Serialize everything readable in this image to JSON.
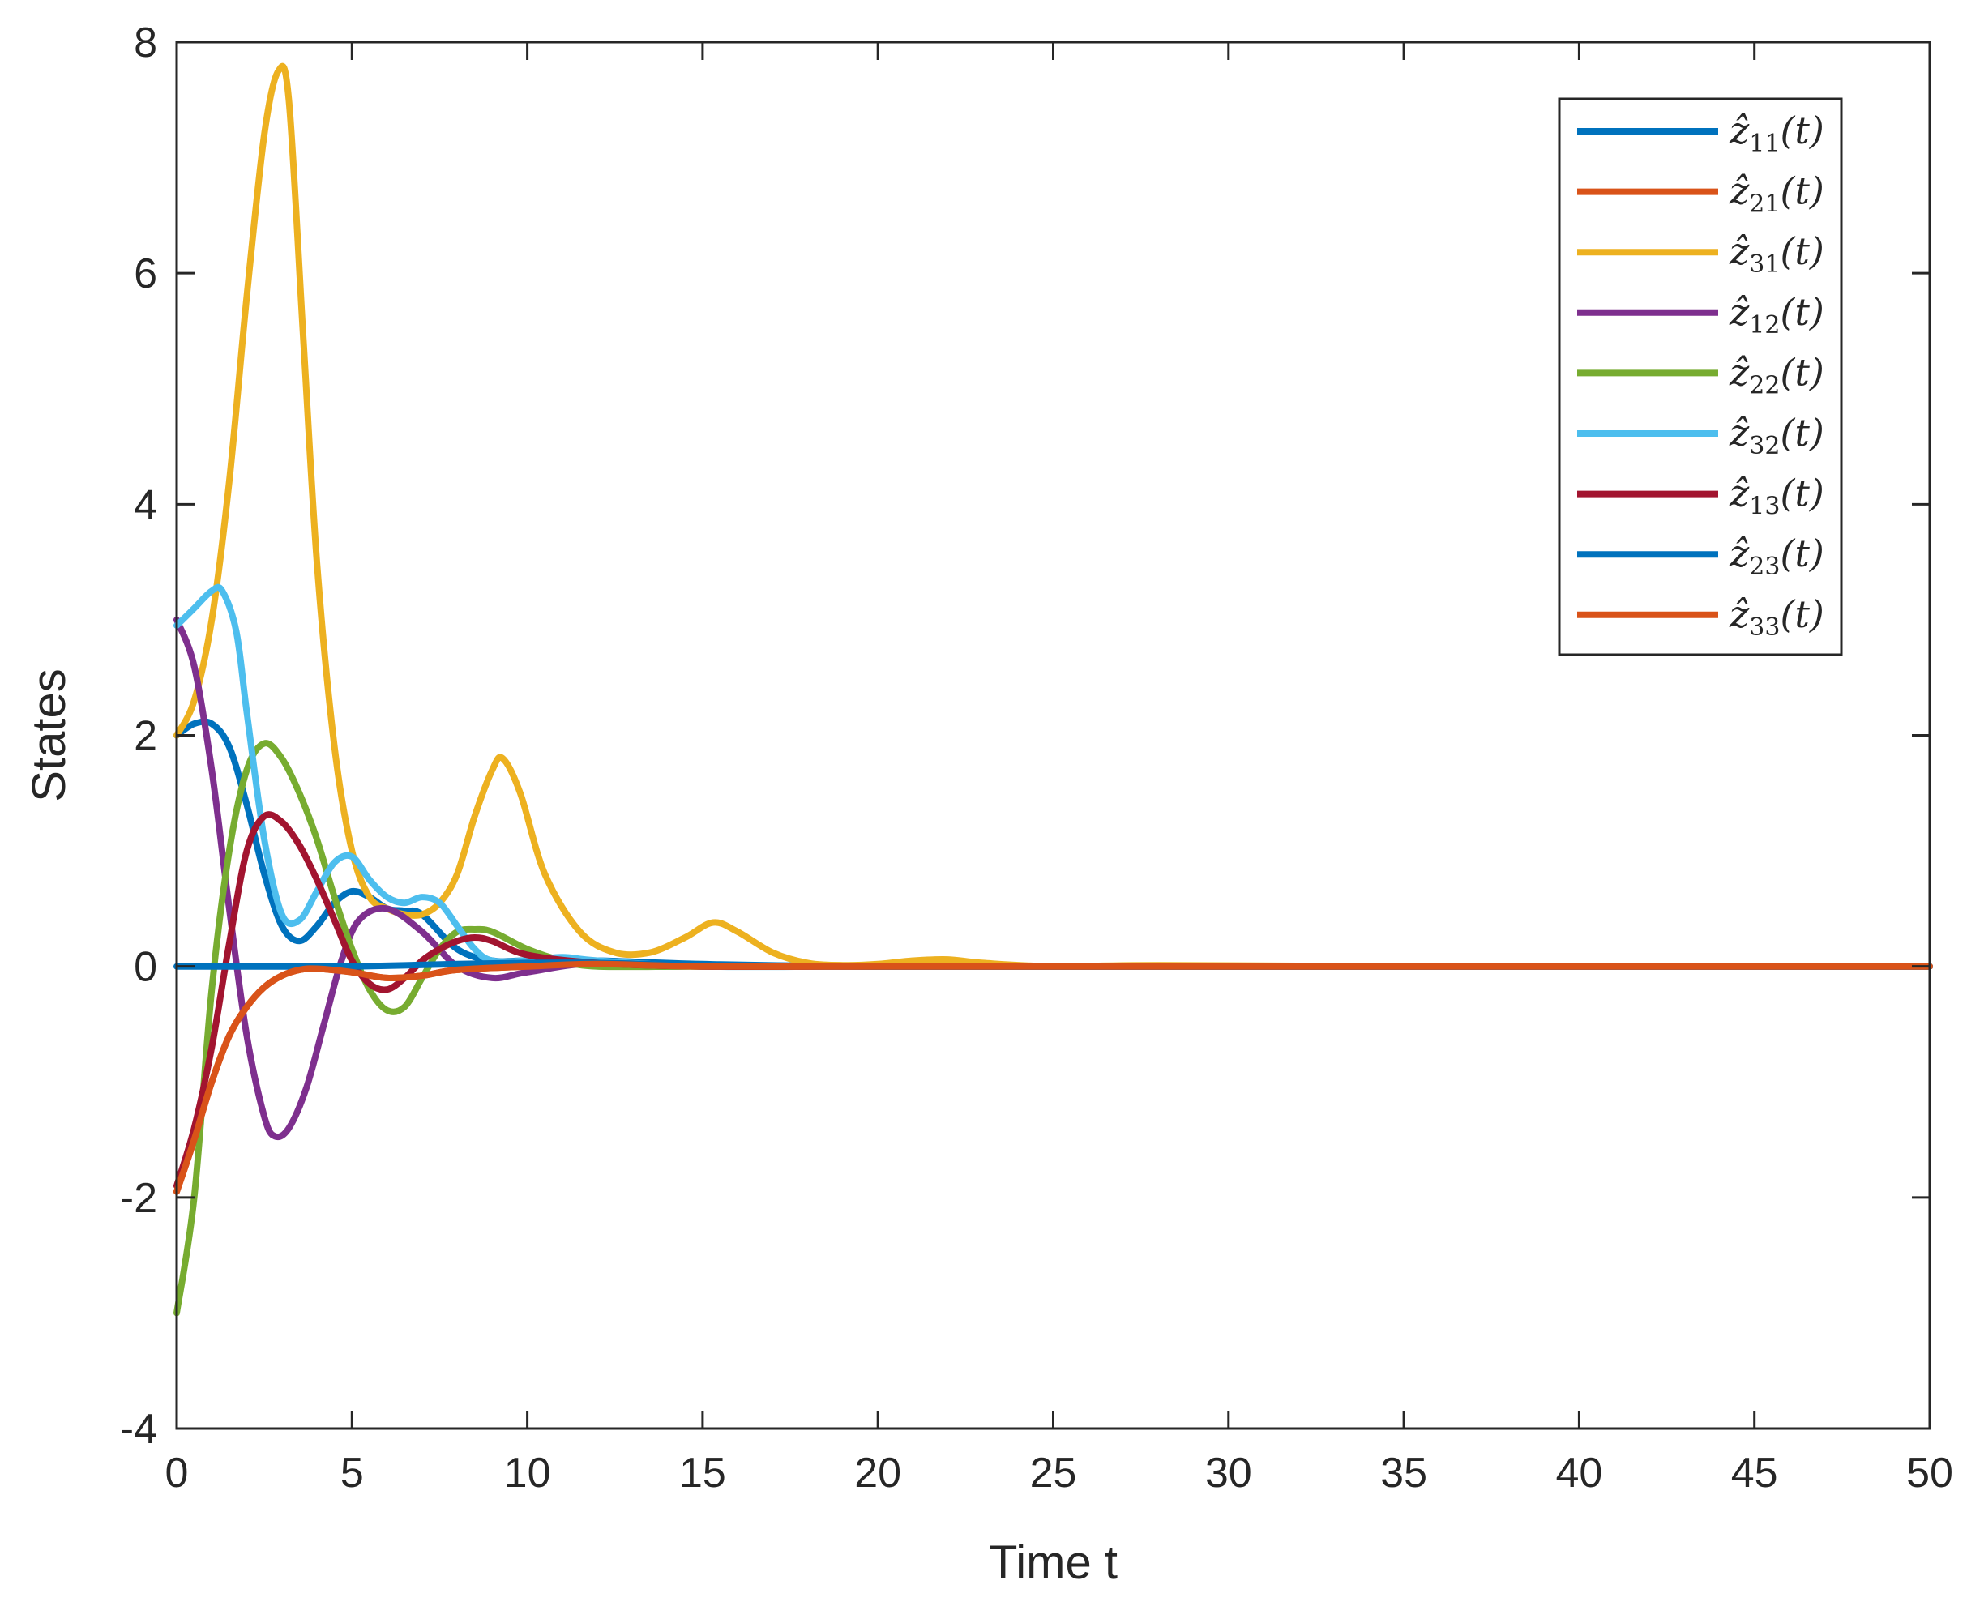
{
  "chart_data": {
    "type": "line",
    "title": "",
    "xlabel": "Time t",
    "ylabel": "States",
    "xlim": [
      0,
      50
    ],
    "ylim": [
      -4,
      8
    ],
    "xticks": [
      0,
      5,
      10,
      15,
      20,
      25,
      30,
      35,
      40,
      45,
      50
    ],
    "yticks": [
      -4,
      -2,
      0,
      2,
      4,
      6,
      8
    ],
    "grid": false,
    "legend_position": "top-right",
    "series": [
      {
        "name": "ẑ11(t)",
        "label_base": "ẑ",
        "label_sub": "11",
        "label_tail": "(t)",
        "color": "#0072BD",
        "x": [
          0,
          0.5,
          1,
          1.5,
          2,
          2.5,
          3,
          3.5,
          4,
          4.5,
          5,
          5.5,
          6,
          6.5,
          7,
          8,
          9,
          10,
          12,
          15,
          20,
          30,
          50
        ],
        "y": [
          2.0,
          2.1,
          2.1,
          1.9,
          1.4,
          0.8,
          0.35,
          0.22,
          0.35,
          0.55,
          0.65,
          0.6,
          0.5,
          0.48,
          0.45,
          0.15,
          0.05,
          0.05,
          0.05,
          0.02,
          0.0,
          0.0,
          0.0
        ]
      },
      {
        "name": "ẑ21(t)",
        "label_base": "ẑ",
        "label_sub": "21",
        "label_tail": "(t)",
        "color": "#D95319",
        "x": [
          0,
          0.5,
          1,
          1.5,
          2,
          2.5,
          3,
          3.5,
          4,
          5,
          6,
          7,
          8,
          10,
          12,
          15,
          20,
          30,
          50
        ],
        "y": [
          -1.95,
          -1.5,
          -1.0,
          -0.6,
          -0.35,
          -0.18,
          -0.08,
          -0.03,
          -0.02,
          -0.05,
          -0.1,
          -0.08,
          -0.03,
          0.0,
          0.02,
          0.0,
          0.0,
          0.0,
          0.0
        ]
      },
      {
        "name": "ẑ31(t)",
        "label_base": "ẑ",
        "label_sub": "31",
        "label_tail": "(t)",
        "color": "#EDB120",
        "x": [
          0,
          0.5,
          1,
          1.5,
          2,
          2.5,
          2.9,
          3.2,
          3.6,
          4,
          4.5,
          5,
          5.5,
          6,
          6.5,
          7,
          7.5,
          8,
          8.5,
          9,
          9.3,
          9.8,
          10.5,
          11.5,
          12.5,
          13.5,
          14.5,
          15.3,
          16,
          17,
          18,
          19,
          20,
          21,
          22,
          23,
          25,
          28,
          35,
          50
        ],
        "y": [
          2.0,
          2.3,
          3.0,
          4.2,
          5.8,
          7.2,
          7.75,
          7.5,
          5.5,
          3.5,
          1.9,
          1.0,
          0.6,
          0.5,
          0.45,
          0.45,
          0.55,
          0.8,
          1.3,
          1.7,
          1.8,
          1.5,
          0.8,
          0.3,
          0.12,
          0.12,
          0.25,
          0.38,
          0.3,
          0.12,
          0.03,
          0.01,
          0.02,
          0.05,
          0.06,
          0.03,
          0.0,
          0.01,
          0.0,
          0.0
        ]
      },
      {
        "name": "ẑ12(t)",
        "label_base": "ẑ",
        "label_sub": "12",
        "label_tail": "(t)",
        "color": "#7E2F8E",
        "x": [
          0,
          0.5,
          1,
          1.5,
          2,
          2.5,
          2.8,
          3.2,
          3.7,
          4.2,
          4.7,
          5.2,
          6,
          7,
          8,
          9,
          10,
          12,
          15,
          20,
          30,
          50
        ],
        "y": [
          3.0,
          2.6,
          1.7,
          0.5,
          -0.6,
          -1.3,
          -1.47,
          -1.4,
          -1.05,
          -0.5,
          0.05,
          0.4,
          0.5,
          0.3,
          0.0,
          -0.1,
          -0.05,
          0.03,
          0.0,
          0.0,
          0.0,
          0.0
        ]
      },
      {
        "name": "ẑ22(t)",
        "label_base": "ẑ",
        "label_sub": "22",
        "label_tail": "(t)",
        "color": "#77AC30",
        "x": [
          0,
          0.5,
          1,
          1.5,
          2,
          2.5,
          3,
          3.5,
          4,
          4.5,
          5,
          5.5,
          6,
          6.5,
          7,
          7.5,
          8,
          8.5,
          9,
          10,
          11,
          12,
          15,
          20,
          30,
          50
        ],
        "y": [
          -3.0,
          -2.0,
          -0.2,
          1.0,
          1.7,
          1.93,
          1.8,
          1.5,
          1.1,
          0.6,
          0.15,
          -0.2,
          -0.38,
          -0.35,
          -0.1,
          0.15,
          0.3,
          0.32,
          0.3,
          0.15,
          0.05,
          0.0,
          0.0,
          0.0,
          0.0,
          0.0
        ]
      },
      {
        "name": "ẑ32(t)",
        "label_base": "ẑ",
        "label_sub": "32",
        "label_tail": "(t)",
        "color": "#4DBEEE",
        "x": [
          0,
          0.5,
          1,
          1.3,
          1.7,
          2,
          2.5,
          3,
          3.5,
          4,
          4.5,
          5,
          5.5,
          6,
          6.5,
          7,
          7.5,
          8,
          8.5,
          9,
          10,
          11,
          12,
          15,
          20,
          30,
          50
        ],
        "y": [
          2.95,
          3.1,
          3.25,
          3.25,
          2.9,
          2.2,
          1.1,
          0.45,
          0.4,
          0.65,
          0.9,
          0.95,
          0.75,
          0.6,
          0.55,
          0.6,
          0.55,
          0.35,
          0.15,
          0.05,
          0.05,
          0.08,
          0.05,
          0.0,
          0.0,
          0.0,
          0.0
        ]
      },
      {
        "name": "ẑ13(t)",
        "label_base": "ẑ",
        "label_sub": "13",
        "label_tail": "(t)",
        "color": "#A2142F",
        "x": [
          0,
          0.5,
          1,
          1.5,
          2,
          2.5,
          3,
          3.5,
          4,
          4.5,
          5,
          5.5,
          6,
          6.5,
          7,
          7.5,
          8,
          8.5,
          9,
          10,
          12,
          15,
          20,
          30,
          50
        ],
        "y": [
          -1.9,
          -1.4,
          -0.7,
          0.2,
          1.0,
          1.3,
          1.25,
          1.05,
          0.75,
          0.4,
          0.05,
          -0.15,
          -0.2,
          -0.1,
          0.05,
          0.15,
          0.22,
          0.25,
          0.22,
          0.1,
          0.03,
          0.0,
          0.0,
          0.0,
          0.0
        ]
      },
      {
        "name": "ẑ23(t)",
        "label_base": "ẑ",
        "label_sub": "23",
        "label_tail": "(t)",
        "color": "#0072BD",
        "x": [
          0,
          1,
          2,
          3,
          5,
          8,
          10,
          12,
          15,
          20,
          30,
          50
        ],
        "y": [
          0.0,
          0.0,
          0.0,
          0.0,
          0.0,
          0.02,
          0.03,
          0.03,
          0.01,
          0.0,
          0.0,
          0.0
        ]
      },
      {
        "name": "ẑ33(t)",
        "label_base": "ẑ",
        "label_sub": "33",
        "label_tail": "(t)",
        "color": "#D95319",
        "x": [
          0,
          0.5,
          1,
          1.5,
          2,
          2.5,
          3,
          3.5,
          4,
          5,
          6,
          7,
          8,
          10,
          12,
          15,
          20,
          22,
          25,
          30,
          50
        ],
        "y": [
          -1.95,
          -1.5,
          -1.0,
          -0.6,
          -0.35,
          -0.18,
          -0.08,
          -0.03,
          -0.02,
          -0.05,
          -0.1,
          -0.08,
          -0.03,
          0.0,
          0.02,
          0.0,
          0.0,
          0.0,
          0.0,
          0.0,
          0.0
        ]
      }
    ]
  }
}
